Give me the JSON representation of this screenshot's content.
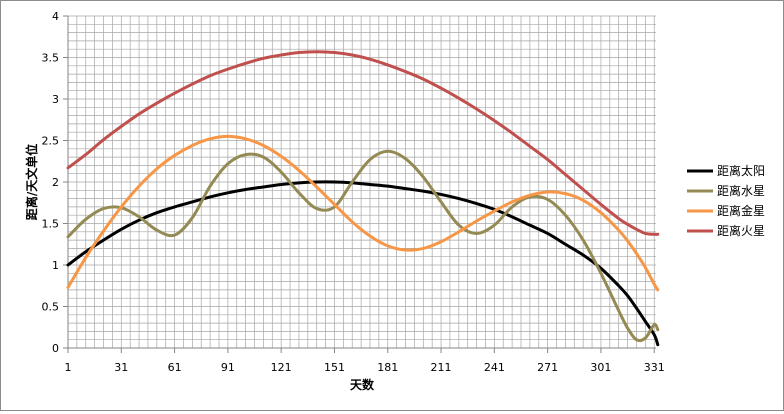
{
  "chart_data": {
    "type": "line",
    "title": "",
    "xlabel": "天数",
    "ylabel": "距离/天文单位",
    "xlim": [
      1,
      332
    ],
    "ylim": [
      0,
      4
    ],
    "grid": true,
    "legend_position": "right",
    "x_ticks": [
      1,
      31,
      61,
      91,
      121,
      151,
      181,
      211,
      241,
      271,
      301,
      331
    ],
    "y_ticks": [
      "0",
      "0.5",
      "1",
      "1.5",
      "2",
      "2.5",
      "3",
      "3.5",
      "4"
    ],
    "x": [
      1,
      11,
      21,
      31,
      41,
      51,
      61,
      71,
      81,
      91,
      101,
      111,
      121,
      131,
      141,
      151,
      161,
      171,
      181,
      191,
      201,
      211,
      221,
      231,
      241,
      251,
      261,
      271,
      281,
      291,
      301,
      311,
      316,
      321,
      326,
      331,
      333
    ],
    "series": [
      {
        "name": "距离太阳",
        "color": "#000000",
        "values": [
          1.0,
          1.16,
          1.3,
          1.43,
          1.54,
          1.63,
          1.7,
          1.76,
          1.82,
          1.87,
          1.91,
          1.94,
          1.97,
          1.99,
          2.0,
          2.0,
          1.99,
          1.97,
          1.95,
          1.92,
          1.89,
          1.85,
          1.8,
          1.74,
          1.67,
          1.58,
          1.48,
          1.38,
          1.25,
          1.12,
          0.96,
          0.75,
          0.63,
          0.48,
          0.32,
          0.16,
          0.04
        ]
      },
      {
        "name": "距离水星",
        "color": "#948a54",
        "values": [
          1.34,
          1.55,
          1.68,
          1.69,
          1.58,
          1.42,
          1.36,
          1.57,
          1.95,
          2.22,
          2.33,
          2.3,
          2.12,
          1.87,
          1.68,
          1.7,
          2.0,
          2.27,
          2.37,
          2.28,
          2.06,
          1.76,
          1.48,
          1.38,
          1.48,
          1.7,
          1.82,
          1.79,
          1.6,
          1.3,
          0.9,
          0.45,
          0.24,
          0.1,
          0.12,
          0.28,
          0.22
        ]
      },
      {
        "name": "距离金星",
        "color": "#f79646",
        "values": [
          0.73,
          1.09,
          1.41,
          1.7,
          1.95,
          2.16,
          2.32,
          2.44,
          2.52,
          2.55,
          2.52,
          2.44,
          2.31,
          2.14,
          1.94,
          1.73,
          1.52,
          1.35,
          1.23,
          1.18,
          1.2,
          1.28,
          1.4,
          1.53,
          1.65,
          1.76,
          1.84,
          1.88,
          1.86,
          1.78,
          1.63,
          1.42,
          1.29,
          1.14,
          0.97,
          0.77,
          0.7
        ]
      },
      {
        "name": "距离火星",
        "color": "#c0504d",
        "values": [
          2.17,
          2.33,
          2.51,
          2.67,
          2.82,
          2.95,
          3.07,
          3.18,
          3.28,
          3.36,
          3.43,
          3.49,
          3.53,
          3.56,
          3.57,
          3.56,
          3.53,
          3.48,
          3.41,
          3.33,
          3.24,
          3.13,
          3.01,
          2.88,
          2.74,
          2.59,
          2.43,
          2.27,
          2.09,
          1.91,
          1.73,
          1.56,
          1.49,
          1.43,
          1.38,
          1.37,
          1.37
        ]
      }
    ]
  }
}
